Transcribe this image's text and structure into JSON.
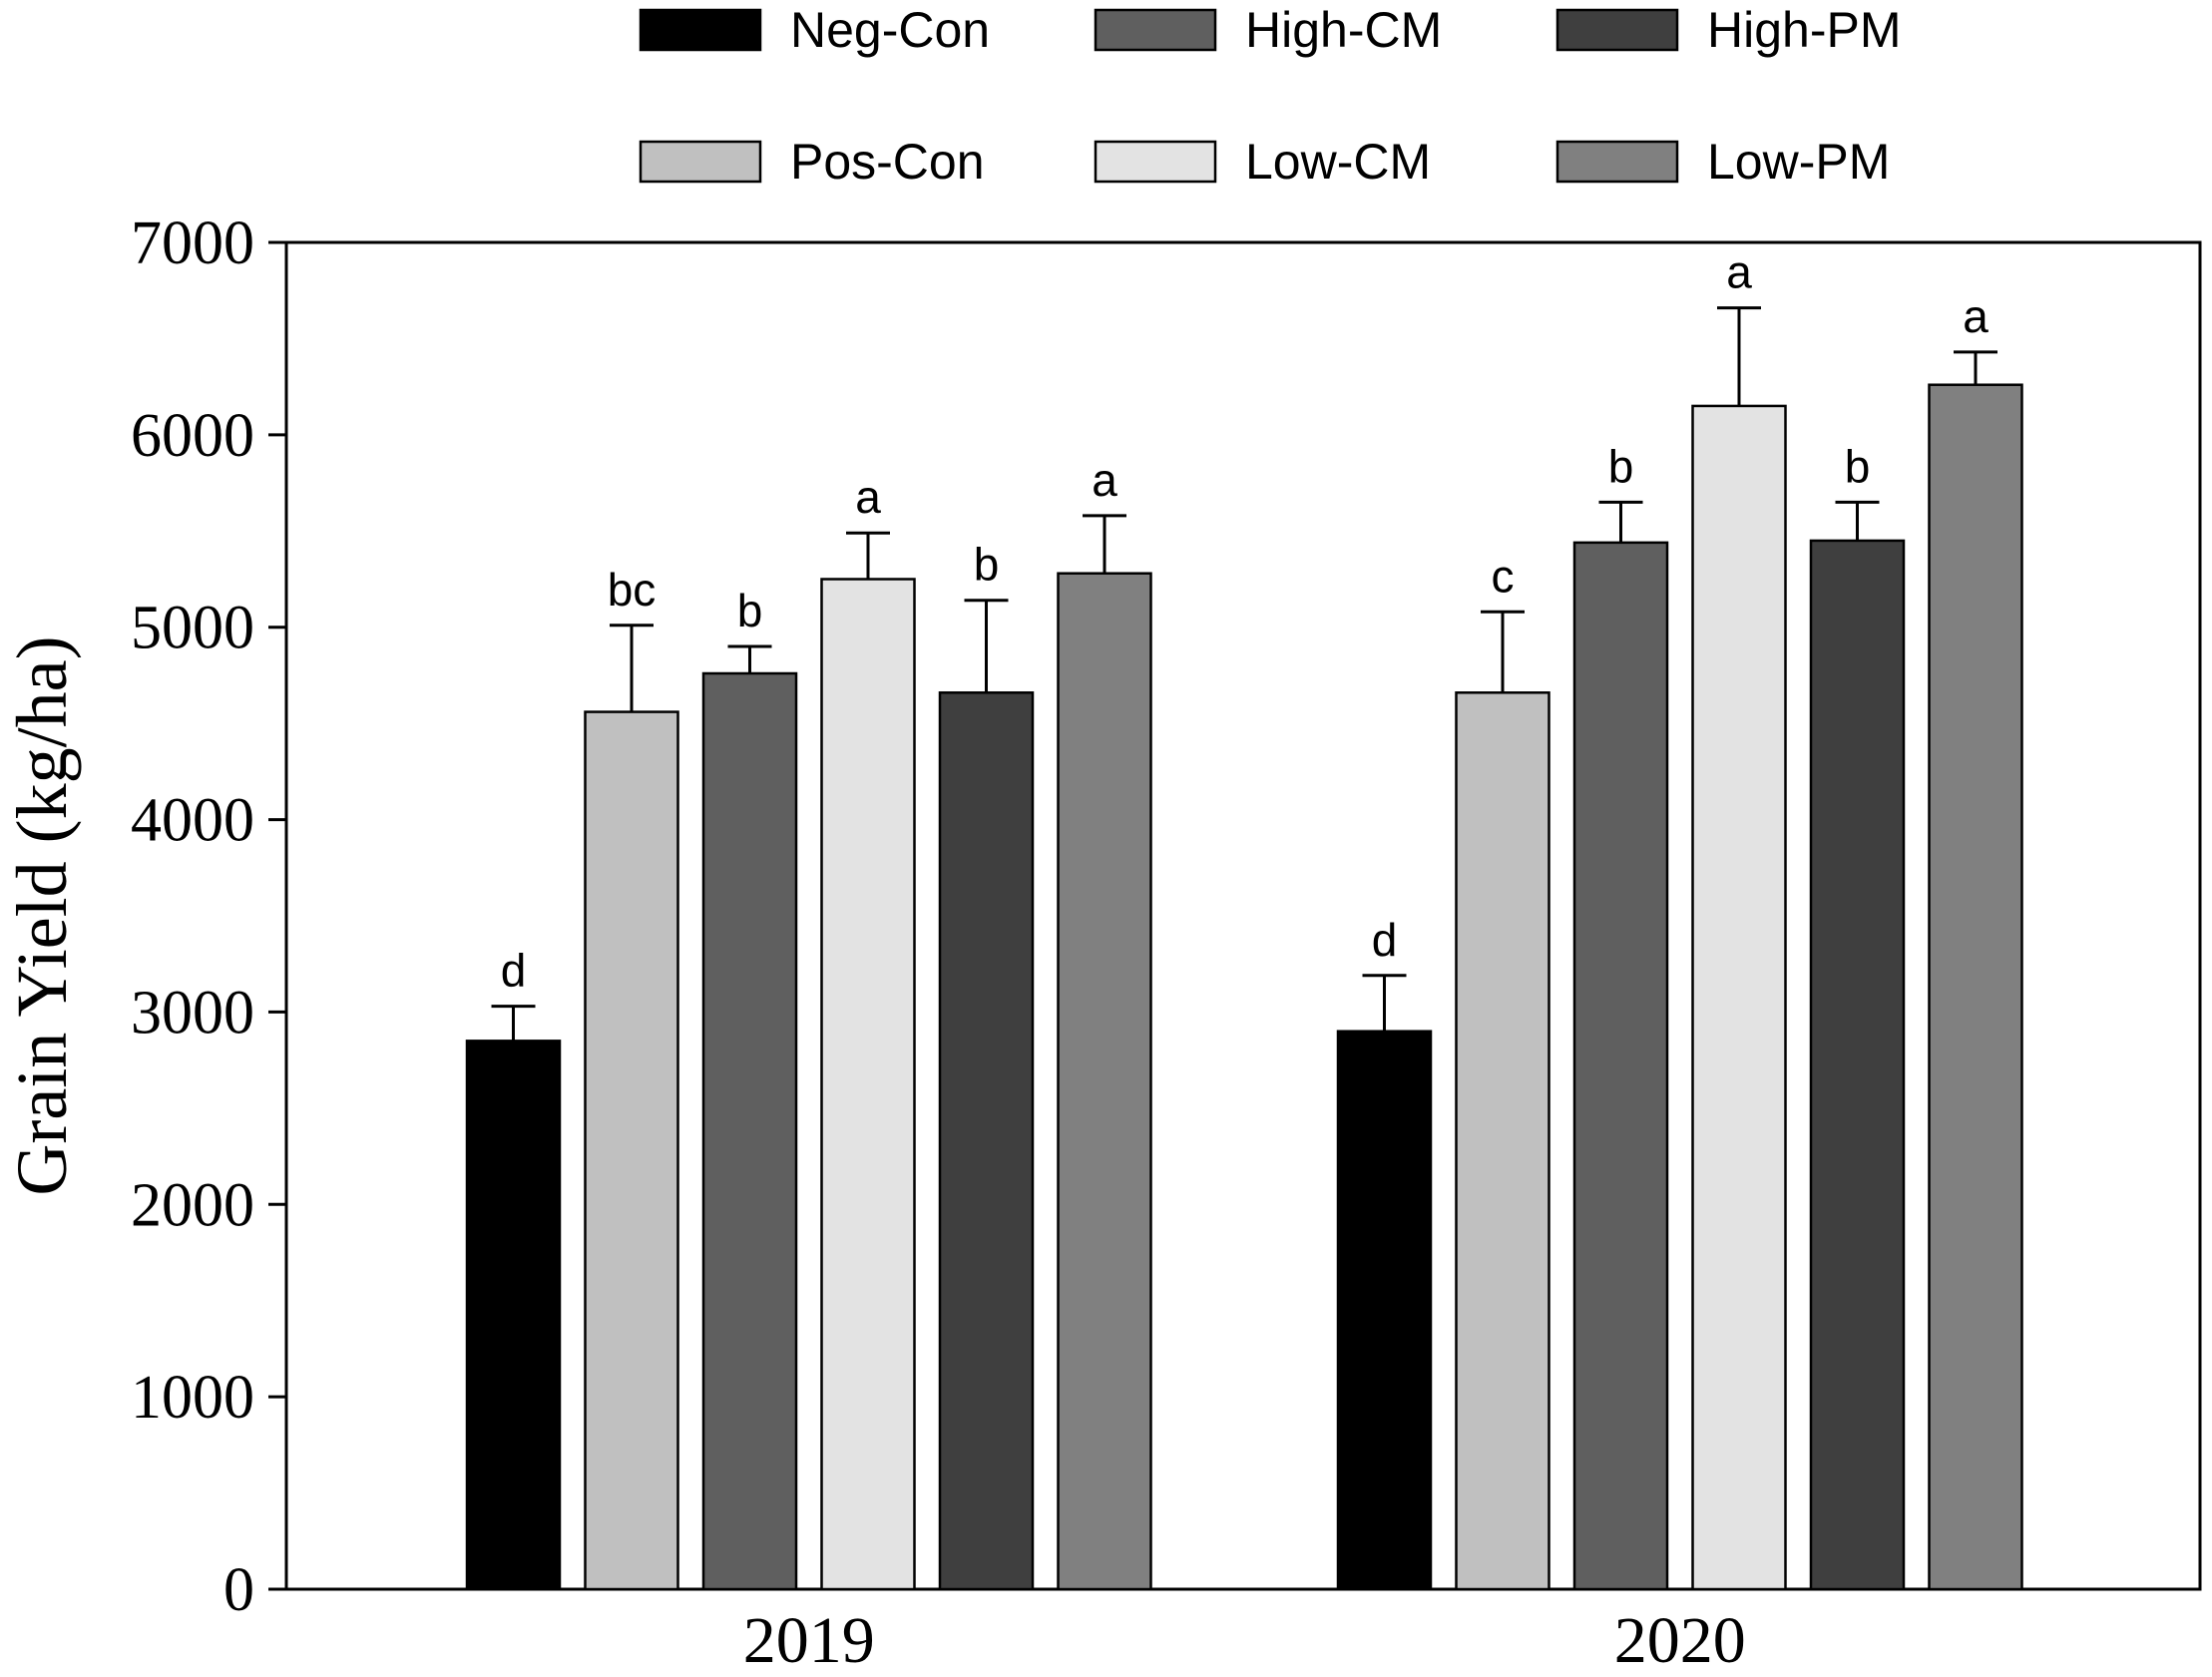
{
  "chart_data": {
    "type": "bar",
    "title": "",
    "xlabel": "",
    "ylabel": "Grain Yield (kg/ha)",
    "ylim": [
      0,
      7000
    ],
    "yticks": [
      0,
      1000,
      2000,
      3000,
      4000,
      5000,
      6000,
      7000
    ],
    "grid": false,
    "legend_position": "top",
    "categories": [
      "2019",
      "2020"
    ],
    "series": [
      {
        "name": "Neg-Con",
        "color": "#000000",
        "values": [
          2850,
          2900
        ],
        "errors": [
          180,
          290
        ],
        "letters": [
          "d",
          "d"
        ]
      },
      {
        "name": "Pos-Con",
        "color": "#c0c0c0",
        "values": [
          4560,
          4660
        ],
        "errors": [
          450,
          420
        ],
        "letters": [
          "bc",
          "c"
        ]
      },
      {
        "name": "High-CM",
        "color": "#5f5f5f",
        "values": [
          4760,
          5440
        ],
        "errors": [
          140,
          210
        ],
        "letters": [
          "b",
          "b"
        ]
      },
      {
        "name": "Low-CM",
        "color": "#e3e3e3",
        "values": [
          5250,
          6150
        ],
        "errors": [
          240,
          510
        ],
        "letters": [
          "a",
          "a"
        ]
      },
      {
        "name": "High-PM",
        "color": "#3f3f3f",
        "values": [
          4660,
          5450
        ],
        "errors": [
          480,
          200
        ],
        "letters": [
          "b",
          "b"
        ]
      },
      {
        "name": "Low-PM",
        "color": "#808080",
        "values": [
          5280,
          6260
        ],
        "errors": [
          300,
          170
        ],
        "letters": [
          "a",
          "a"
        ]
      }
    ]
  }
}
